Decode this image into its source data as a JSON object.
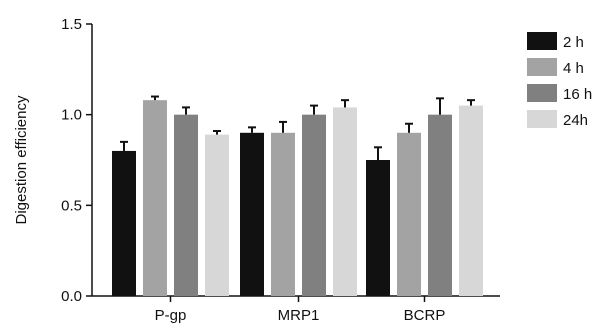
{
  "chart_data": {
    "type": "bar",
    "categories": [
      "P-gp",
      "MRP1",
      "BCRP"
    ],
    "series": [
      {
        "name": "2 h",
        "color": "#111111",
        "values": [
          0.8,
          0.9,
          0.75
        ],
        "errors": [
          0.05,
          0.03,
          0.07
        ]
      },
      {
        "name": "4 h",
        "color": "#a3a3a3",
        "values": [
          1.08,
          0.9,
          0.9
        ],
        "errors": [
          0.02,
          0.06,
          0.05
        ]
      },
      {
        "name": "16 h",
        "color": "#808080",
        "values": [
          1.0,
          1.0,
          1.0
        ],
        "errors": [
          0.04,
          0.05,
          0.09
        ]
      },
      {
        "name": "24h",
        "color": "#d7d7d7",
        "values": [
          0.89,
          1.04,
          1.05
        ],
        "errors": [
          0.02,
          0.04,
          0.03
        ]
      }
    ],
    "ylabel": "Digestion efficiency",
    "xlabel": "",
    "ylim": [
      0.0,
      1.5
    ],
    "yticks": [
      "0.0",
      "0.5",
      "1.0",
      "1.5"
    ],
    "legend_position": "right",
    "grid": false
  }
}
